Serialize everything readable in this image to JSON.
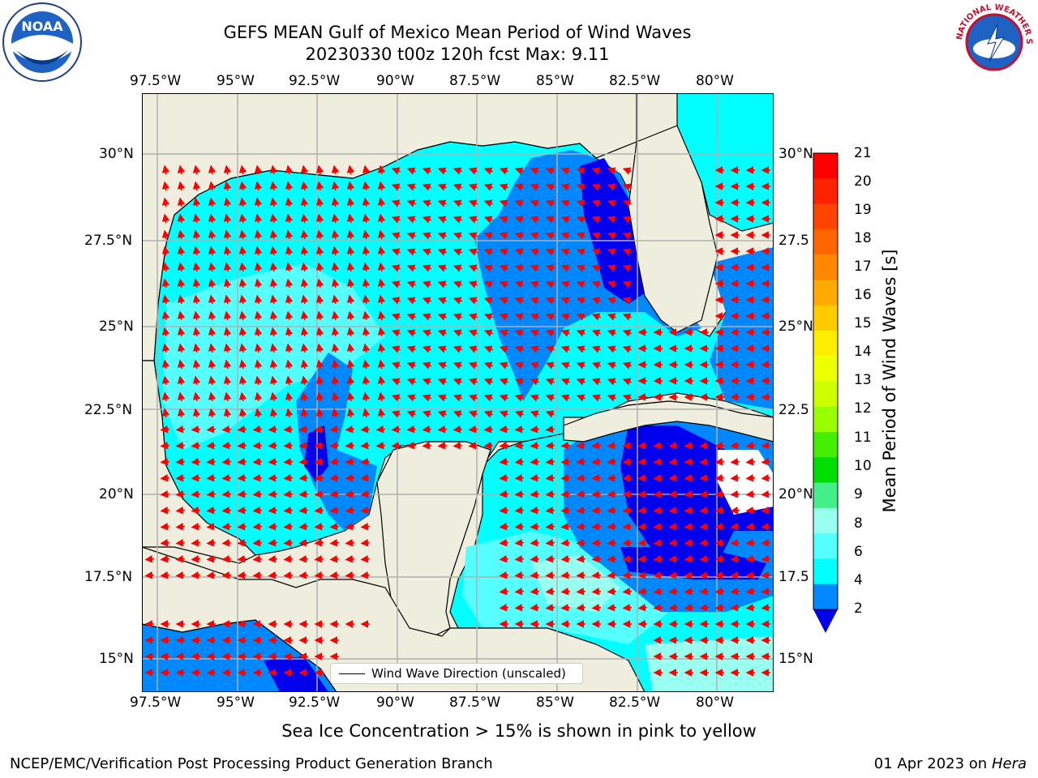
{
  "title": {
    "line1": "GEFS MEAN Gulf of Mexico Mean Period of Wind Waves",
    "line2": "20230330 t00z 120h fcst   Max: 9.11"
  },
  "logos": {
    "left": {
      "name": "noaa-logo",
      "text": "NOAA"
    },
    "right": {
      "name": "nws-logo",
      "text": "NATIONAL WEATHER SERVICE"
    }
  },
  "axes": {
    "lon_ticks": [
      "97.5°W",
      "95°W",
      "92.5°W",
      "90°W",
      "87.5°W",
      "85°W",
      "82.5°W",
      "80°W"
    ],
    "lat_ticks_left": [
      "30°N",
      "27.5°N",
      "25°N",
      "22.5°N",
      "20°N",
      "17.5°N",
      "15°N"
    ],
    "lat_ticks_right": [
      "30°N",
      "27.5",
      "25°N",
      "22.5",
      "20°N",
      "17.5",
      "15°N"
    ]
  },
  "colorbar": {
    "label": "Mean Period of Wind Waves [s]",
    "ticks": [
      "21",
      "20",
      "19",
      "18",
      "17",
      "16",
      "15",
      "14",
      "13",
      "12",
      "11",
      "10",
      "9",
      "8",
      "6",
      "4",
      "2"
    ],
    "colors": [
      "#ff0000",
      "#ff2200",
      "#ff4400",
      "#ff6600",
      "#ff8800",
      "#ffaa00",
      "#ffcc00",
      "#ffee00",
      "#eeff00",
      "#ccff00",
      "#99ff00",
      "#44ee00",
      "#00dd00",
      "#44ee88",
      "#99ffee",
      "#55ffff",
      "#00ffff",
      "#0088ff"
    ],
    "under_color": "#0000ee"
  },
  "legend": {
    "label": "Wind Wave Direction (unscaled)"
  },
  "note": "Sea Ice Concentration > 15% is shown in pink to yellow",
  "footer": {
    "left": "NCEP/EMC/Verification Post Processing Product Generation Branch",
    "right_date": "01 Apr 2023 on ",
    "right_machine": "Hera"
  },
  "map_colors": {
    "land": "#efedde",
    "period_4_6": "#00ffff",
    "period_6_8": "#55ffff",
    "period_8_9": "#99ffee",
    "period_2_4": "#0088ff",
    "period_below_2": "#0000ee",
    "arrow": "#ff0000",
    "grid": "#b0b0b0"
  }
}
